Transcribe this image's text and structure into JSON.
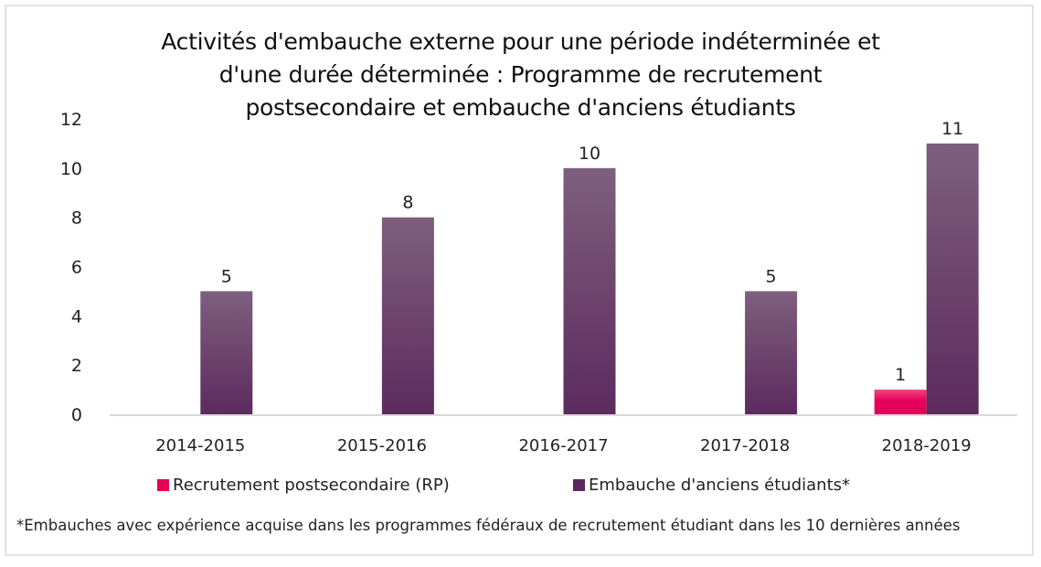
{
  "colors": {
    "rp_top": "#f0457a",
    "rp_bottom": "#e5005a",
    "emb_top": "#7e5f7e",
    "emb_bottom": "#5c2b5e",
    "axis": "#d9d9d9",
    "border": "#e3e3e3"
  },
  "chart_data": {
    "type": "bar",
    "title_lines": [
      "Activités d'embauche externe pour une période indéterminée et",
      "d'une durée déterminée : Programme de recrutement",
      "postsecondaire et embauche d'anciens étudiants"
    ],
    "categories": [
      "2014-2015",
      "2015-2016",
      "2016-2017",
      "2017-2018",
      "2018-2019"
    ],
    "series": [
      {
        "name": "Recrutement postsecondaire (RP)",
        "values": [
          0,
          0,
          0,
          0,
          1
        ],
        "labels": [
          null,
          null,
          null,
          null,
          "1"
        ]
      },
      {
        "name": "Embauche d'anciens étudiants*",
        "values": [
          5,
          8,
          10,
          5,
          11
        ],
        "labels": [
          "5",
          "8",
          "10",
          "5",
          "11"
        ]
      }
    ],
    "ylim": [
      0,
      12
    ],
    "yticks": [
      "0",
      "2",
      "4",
      "6",
      "8",
      "10",
      "12"
    ],
    "xlabel": "",
    "ylabel": "",
    "grid": false,
    "legend_position": "bottom",
    "footnote": "*Embauches avec expérience acquise dans les programmes fédéraux de recrutement étudiant dans les 10 dernières années"
  }
}
